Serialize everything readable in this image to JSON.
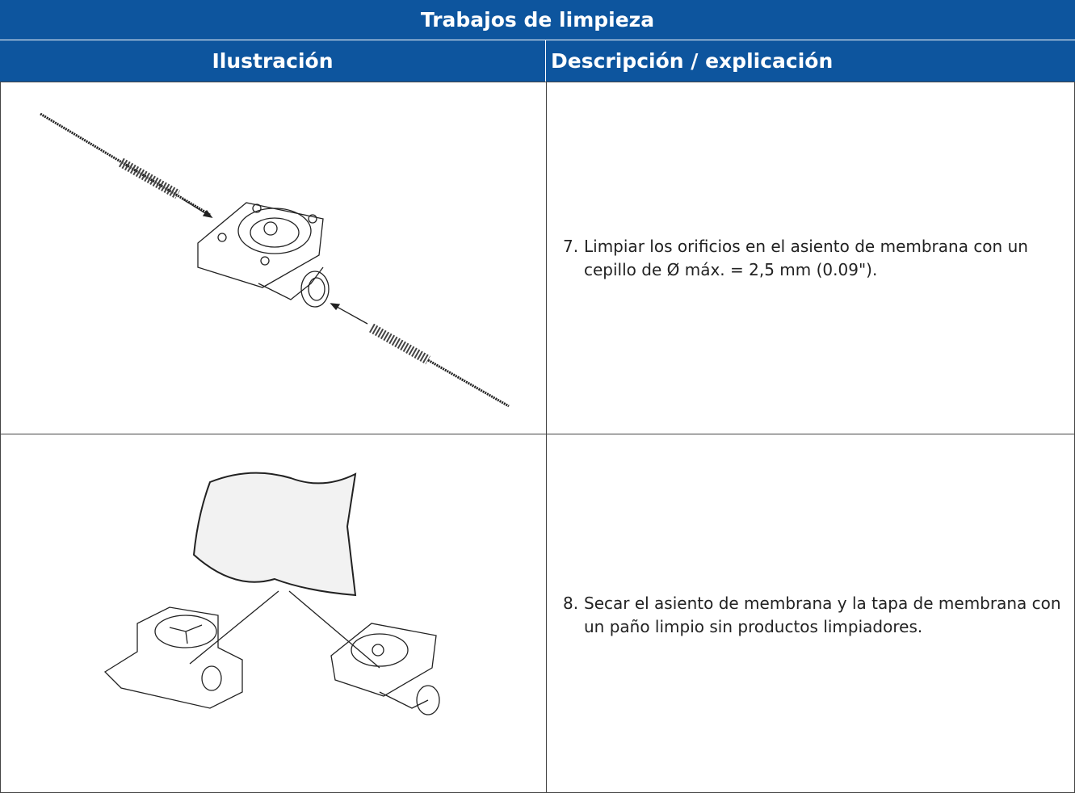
{
  "table": {
    "title": "Trabajos de limpieza",
    "headers": [
      "Ilustración",
      "Descripción / explicación"
    ],
    "rows": [
      {
        "step": "7.",
        "text": "Limpiar los orificios en el asiento de membrana con un cepillo de Ø máx. = 2,5 mm (0.09\")."
      },
      {
        "step": "8.",
        "text": "Secar el asiento de membrana y la tapa de membrana con un paño limpio sin productos limpiadores."
      }
    ]
  }
}
